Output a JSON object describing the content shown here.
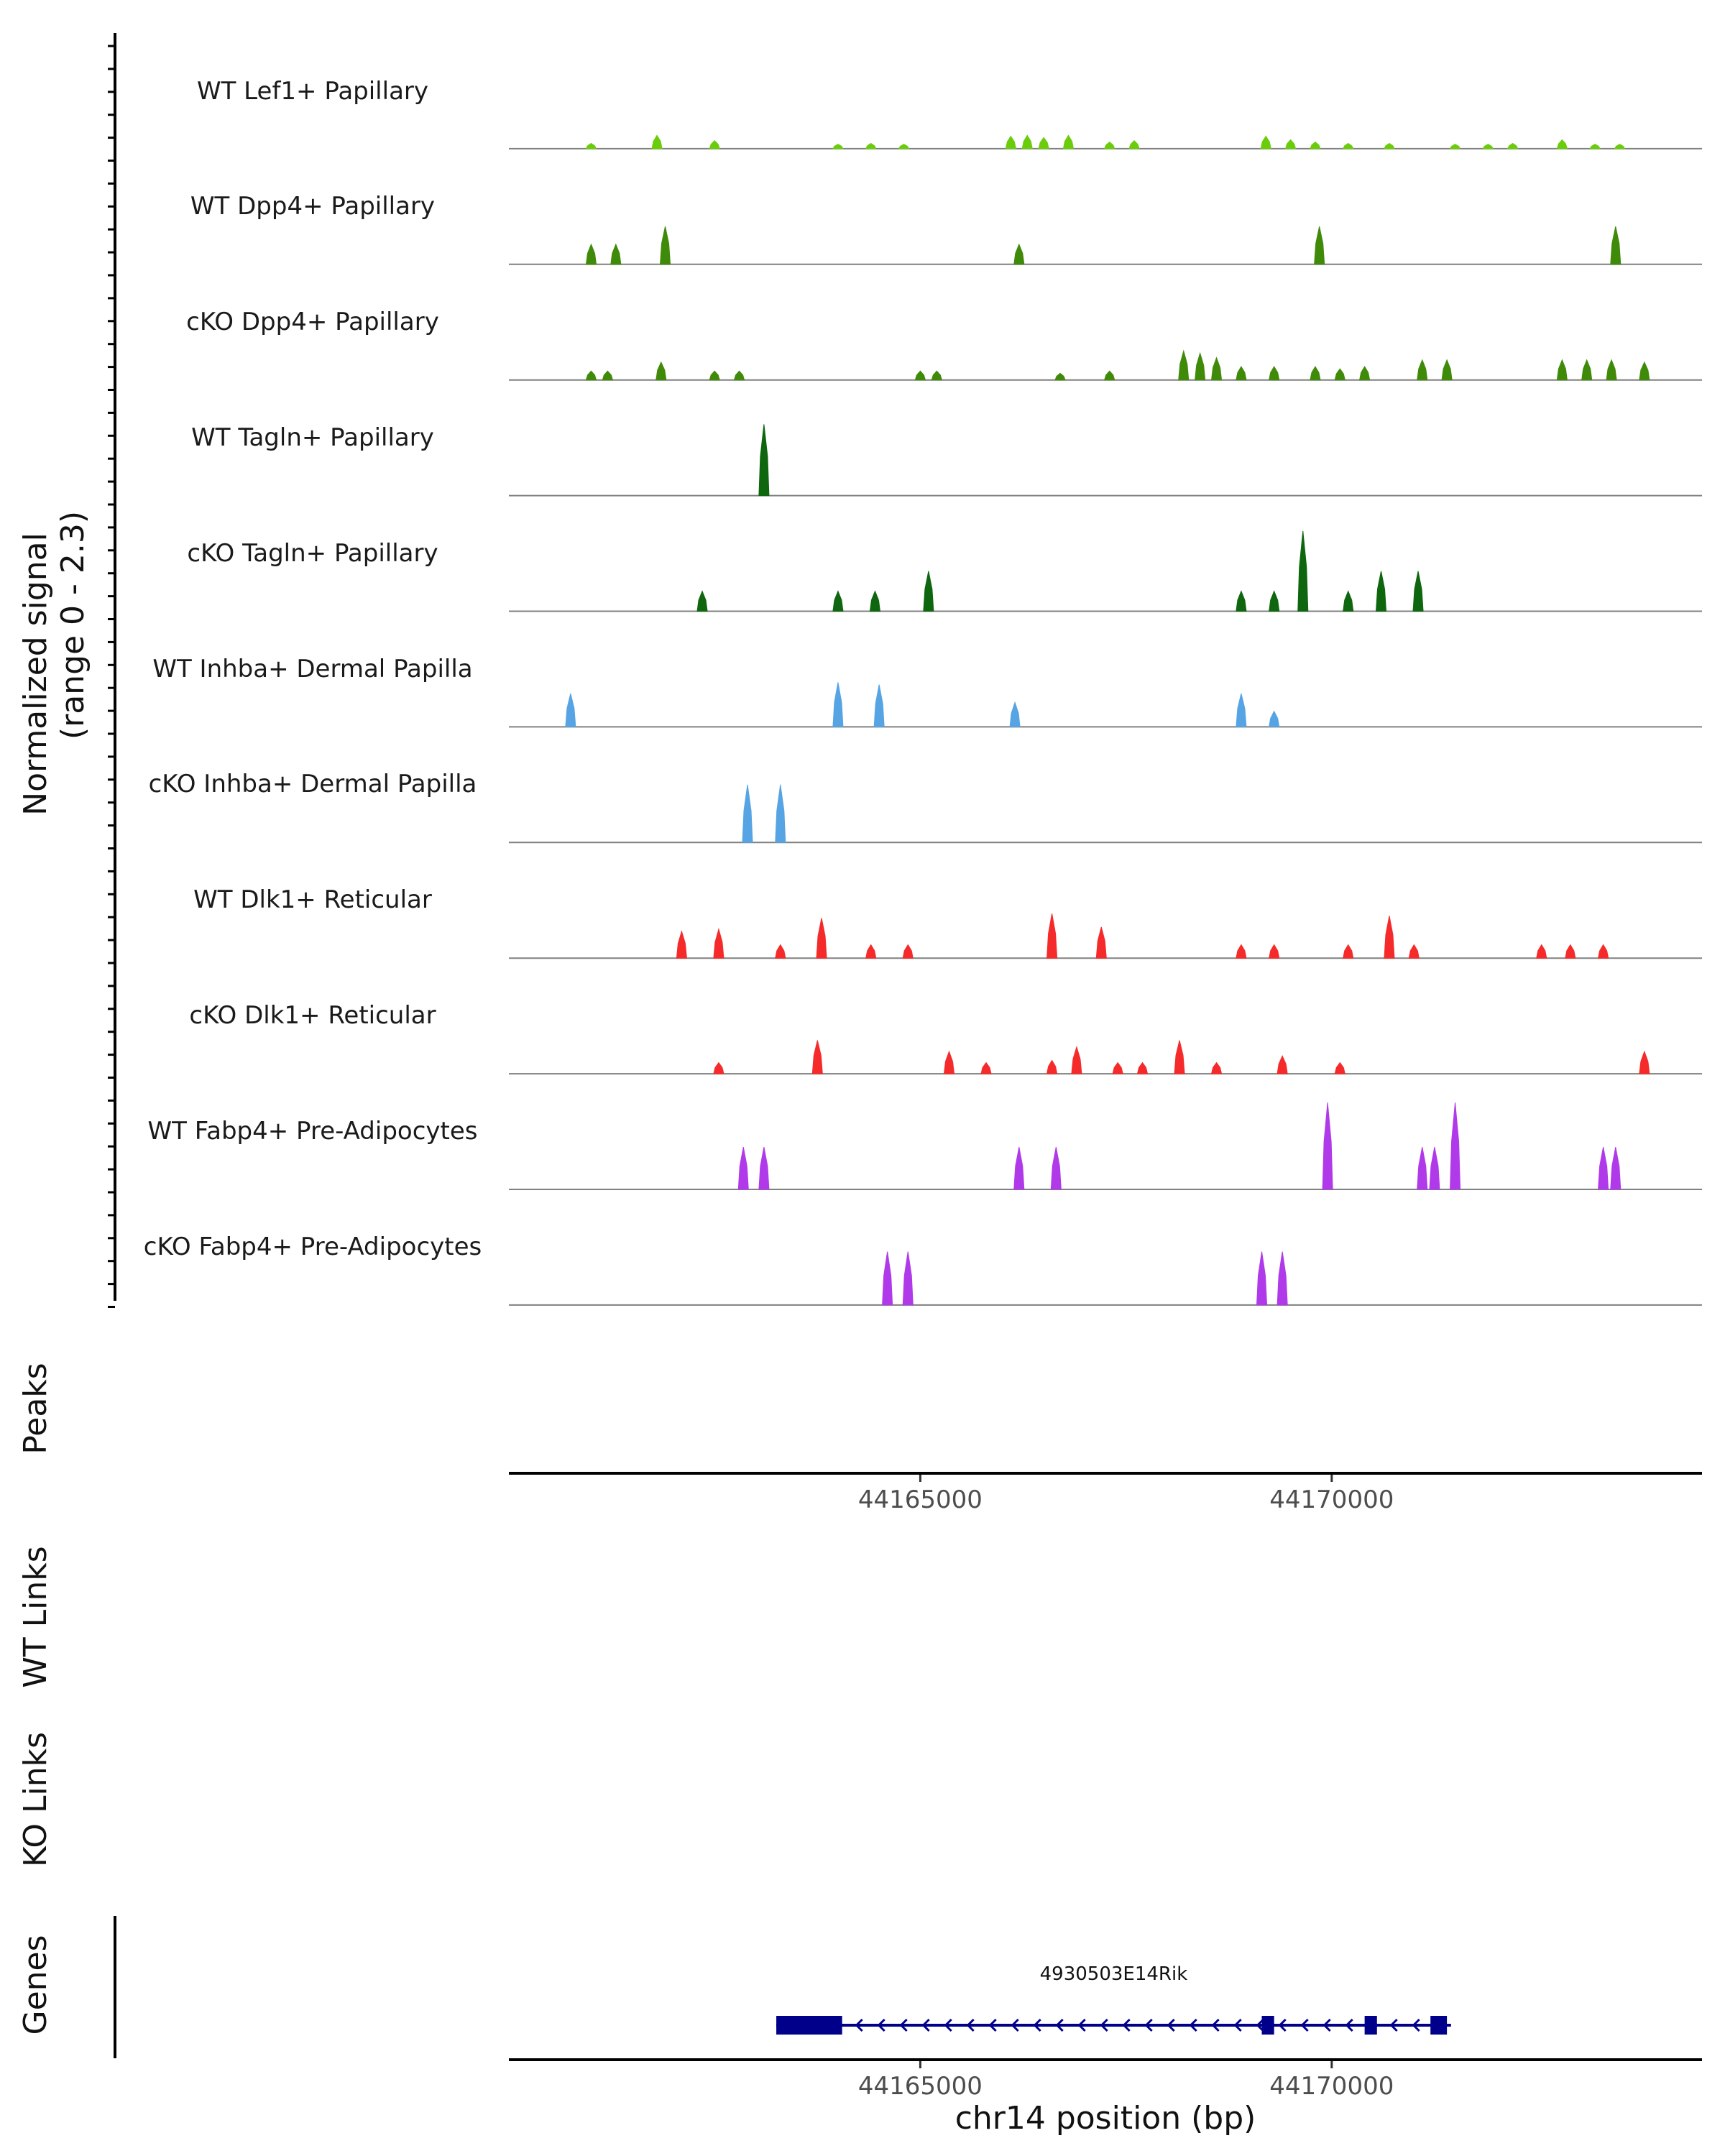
{
  "chart_data": {
    "type": "area",
    "chromosome": "chr14",
    "xlim": [
      44160000,
      44174500
    ],
    "x_ticks": [
      44165000,
      44170000
    ],
    "x_tick_labels": [
      "44165000",
      "44170000"
    ],
    "xlabel": "chr14 position (bp)",
    "ylabel": "Normalized signal",
    "ylabel_range": "(range 0 - 2.3)",
    "ylim": [
      0,
      2.3
    ],
    "panel_labels": {
      "peaks": "Peaks",
      "wt_links": "WT Links",
      "ko_links": "KO Links",
      "genes": "Genes"
    },
    "series": [
      {
        "name": "WT Lef1+ Papillary",
        "color": "#6ACC0A",
        "peaks": [
          [
            44161000,
            0.12
          ],
          [
            44161800,
            0.3
          ],
          [
            44162500,
            0.18
          ],
          [
            44164000,
            0.1
          ],
          [
            44164400,
            0.12
          ],
          [
            44164800,
            0.1
          ],
          [
            44166100,
            0.28
          ],
          [
            44166300,
            0.3
          ],
          [
            44166500,
            0.25
          ],
          [
            44166800,
            0.3
          ],
          [
            44167300,
            0.15
          ],
          [
            44167600,
            0.18
          ],
          [
            44169200,
            0.28
          ],
          [
            44169500,
            0.2
          ],
          [
            44169800,
            0.15
          ],
          [
            44170200,
            0.12
          ],
          [
            44170700,
            0.12
          ],
          [
            44171500,
            0.1
          ],
          [
            44171900,
            0.1
          ],
          [
            44172200,
            0.12
          ],
          [
            44172800,
            0.2
          ],
          [
            44173200,
            0.1
          ],
          [
            44173500,
            0.1
          ]
        ]
      },
      {
        "name": "WT Dpp4+ Papillary",
        "color": "#408A0A",
        "peaks": [
          [
            44161000,
            0.45
          ],
          [
            44161300,
            0.45
          ],
          [
            44161900,
            0.85
          ],
          [
            44166200,
            0.45
          ],
          [
            44169850,
            0.85
          ],
          [
            44173450,
            0.85
          ]
        ]
      },
      {
        "name": "cKO Dpp4+ Papillary",
        "color": "#408A0A",
        "peaks": [
          [
            44161000,
            0.2
          ],
          [
            44161200,
            0.2
          ],
          [
            44161850,
            0.4
          ],
          [
            44162500,
            0.2
          ],
          [
            44162800,
            0.2
          ],
          [
            44165000,
            0.2
          ],
          [
            44165200,
            0.2
          ],
          [
            44166700,
            0.15
          ],
          [
            44167300,
            0.2
          ],
          [
            44168200,
            0.65
          ],
          [
            44168400,
            0.6
          ],
          [
            44168600,
            0.5
          ],
          [
            44168900,
            0.3
          ],
          [
            44169300,
            0.3
          ],
          [
            44169800,
            0.3
          ],
          [
            44170100,
            0.25
          ],
          [
            44170400,
            0.3
          ],
          [
            44171100,
            0.45
          ],
          [
            44171400,
            0.45
          ],
          [
            44172800,
            0.45
          ],
          [
            44173100,
            0.45
          ],
          [
            44173400,
            0.45
          ],
          [
            44173800,
            0.4
          ]
        ]
      },
      {
        "name": "WT Tagln+ Papillary",
        "color": "#0E660E",
        "peaks": [
          [
            44163100,
            1.6
          ]
        ]
      },
      {
        "name": "cKO Tagln+ Papillary",
        "color": "#0E660E",
        "peaks": [
          [
            44162350,
            0.45
          ],
          [
            44164000,
            0.45
          ],
          [
            44164450,
            0.45
          ],
          [
            44165100,
            0.9
          ],
          [
            44168900,
            0.45
          ],
          [
            44169300,
            0.45
          ],
          [
            44169650,
            1.8
          ],
          [
            44170200,
            0.45
          ],
          [
            44170600,
            0.9
          ],
          [
            44171050,
            0.9
          ]
        ]
      },
      {
        "name": "WT Inhba+ Dermal Papilla",
        "color": "#56A4E4",
        "peaks": [
          [
            44160750,
            0.75
          ],
          [
            44164000,
            1.0
          ],
          [
            44164500,
            0.95
          ],
          [
            44166150,
            0.55
          ],
          [
            44168900,
            0.75
          ],
          [
            44169300,
            0.35
          ]
        ]
      },
      {
        "name": "cKO Inhba+ Dermal Papilla",
        "color": "#56A4E4",
        "peaks": [
          [
            44162900,
            1.3
          ],
          [
            44163300,
            1.3
          ]
        ]
      },
      {
        "name": "WT Dlk1+ Reticular",
        "color": "#F52A2A",
        "peaks": [
          [
            44162100,
            0.6
          ],
          [
            44162550,
            0.65
          ],
          [
            44163300,
            0.3
          ],
          [
            44163800,
            0.9
          ],
          [
            44164400,
            0.3
          ],
          [
            44164850,
            0.3
          ],
          [
            44166600,
            1.0
          ],
          [
            44167200,
            0.7
          ],
          [
            44168900,
            0.3
          ],
          [
            44169300,
            0.3
          ],
          [
            44170200,
            0.3
          ],
          [
            44170700,
            0.95
          ],
          [
            44171000,
            0.3
          ],
          [
            44172550,
            0.3
          ],
          [
            44172900,
            0.3
          ],
          [
            44173300,
            0.3
          ]
        ]
      },
      {
        "name": "cKO Dlk1+ Reticular",
        "color": "#F52A2A",
        "peaks": [
          [
            44162550,
            0.25
          ],
          [
            44163750,
            0.75
          ],
          [
            44165350,
            0.5
          ],
          [
            44165800,
            0.25
          ],
          [
            44166600,
            0.3
          ],
          [
            44166900,
            0.6
          ],
          [
            44167400,
            0.25
          ],
          [
            44167700,
            0.25
          ],
          [
            44168150,
            0.75
          ],
          [
            44168600,
            0.25
          ],
          [
            44169400,
            0.4
          ],
          [
            44170100,
            0.25
          ],
          [
            44173800,
            0.5
          ]
        ]
      },
      {
        "name": "WT Fabp4+ Pre-Adipocytes",
        "color": "#B03AEA",
        "peaks": [
          [
            44162850,
            0.95
          ],
          [
            44163100,
            0.95
          ],
          [
            44166200,
            0.95
          ],
          [
            44166650,
            0.95
          ],
          [
            44169950,
            1.95
          ],
          [
            44171100,
            0.95
          ],
          [
            44171250,
            0.95
          ],
          [
            44171500,
            1.95
          ],
          [
            44173300,
            0.95
          ],
          [
            44173450,
            0.95
          ]
        ]
      },
      {
        "name": "cKO Fabp4+ Pre-Adipocytes",
        "color": "#B03AEA",
        "peaks": [
          [
            44164600,
            1.2
          ],
          [
            44164850,
            1.2
          ],
          [
            44169150,
            1.2
          ],
          [
            44169400,
            1.2
          ]
        ]
      }
    ],
    "gene": {
      "name": "4930503E14Rik",
      "color": "#00008B",
      "start": 44163250,
      "end": 44171450,
      "strand": "-",
      "exons": [
        [
          44163250,
          44164050
        ],
        [
          44169150,
          44169300
        ],
        [
          44170400,
          44170550
        ],
        [
          44171200,
          44171400
        ]
      ]
    }
  }
}
